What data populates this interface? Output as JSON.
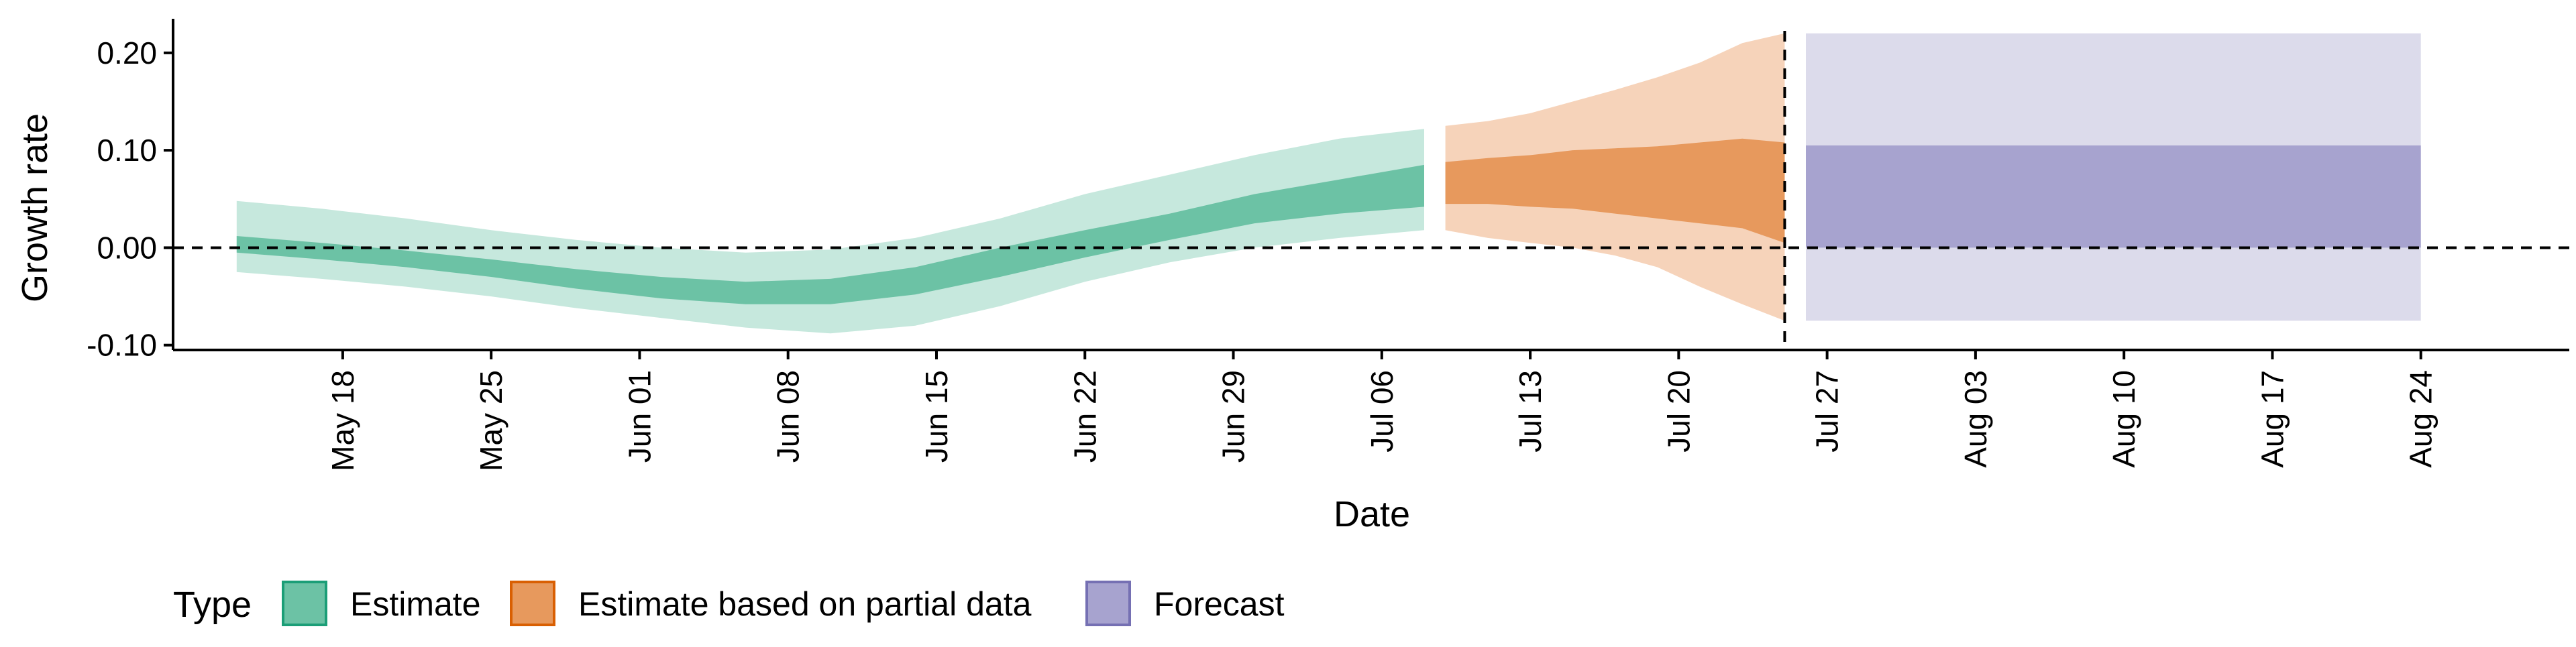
{
  "chart_data": {
    "type": "area",
    "xlabel": "Date",
    "ylabel": "Growth rate",
    "x_range": [
      "2020-05-10",
      "2020-08-31"
    ],
    "ylim": [
      -0.105,
      0.235
    ],
    "y_ticks": [
      {
        "value": 0.2,
        "label": "0.20"
      },
      {
        "value": 0.1,
        "label": "0.10"
      },
      {
        "value": 0.0,
        "label": "0.00"
      },
      {
        "value": -0.1,
        "label": "-0.10"
      }
    ],
    "x_ticks": [
      {
        "date": "2020-05-18",
        "label": "May 18"
      },
      {
        "date": "2020-05-25",
        "label": "May 25"
      },
      {
        "date": "2020-06-01",
        "label": "Jun 01"
      },
      {
        "date": "2020-06-08",
        "label": "Jun 08"
      },
      {
        "date": "2020-06-15",
        "label": "Jun 15"
      },
      {
        "date": "2020-06-22",
        "label": "Jun 22"
      },
      {
        "date": "2020-06-29",
        "label": "Jun 29"
      },
      {
        "date": "2020-07-06",
        "label": "Jul 06"
      },
      {
        "date": "2020-07-13",
        "label": "Jul 13"
      },
      {
        "date": "2020-07-20",
        "label": "Jul 20"
      },
      {
        "date": "2020-07-27",
        "label": "Jul 27"
      },
      {
        "date": "2020-08-03",
        "label": "Aug 03"
      },
      {
        "date": "2020-08-10",
        "label": "Aug 10"
      },
      {
        "date": "2020-08-17",
        "label": "Aug 17"
      },
      {
        "date": "2020-08-24",
        "label": "Aug 24"
      }
    ],
    "reference_lines": {
      "horizontal_y": 0.0,
      "vertical_date": "2020-07-25"
    },
    "grid": false,
    "legend": {
      "title": "Type",
      "position": "bottom-left",
      "entries": [
        {
          "label": "Estimate",
          "fill": "#6cc2a5",
          "border": "#1b9e77"
        },
        {
          "label": "Estimate based on partial data",
          "fill": "#e7995d",
          "border": "#d95f02"
        },
        {
          "label": "Forecast",
          "fill": "#a7a3cf",
          "border": "#7570b3"
        }
      ]
    },
    "series": [
      {
        "name": "Estimate",
        "color_dark": "#6cc2a5",
        "color_light": "#c6e8dd",
        "x": [
          "2020-05-13",
          "2020-05-17",
          "2020-05-21",
          "2020-05-25",
          "2020-05-29",
          "2020-06-02",
          "2020-06-06",
          "2020-06-10",
          "2020-06-14",
          "2020-06-18",
          "2020-06-22",
          "2020-06-26",
          "2020-06-30",
          "2020-07-04",
          "2020-07-08"
        ],
        "lower90": [
          -0.025,
          -0.032,
          -0.04,
          -0.05,
          -0.062,
          -0.072,
          -0.082,
          -0.088,
          -0.08,
          -0.06,
          -0.035,
          -0.015,
          0.0,
          0.01,
          0.018
        ],
        "lower50": [
          -0.005,
          -0.012,
          -0.02,
          -0.03,
          -0.042,
          -0.052,
          -0.058,
          -0.058,
          -0.048,
          -0.03,
          -0.01,
          0.008,
          0.025,
          0.035,
          0.042
        ],
        "upper50": [
          0.012,
          0.005,
          -0.003,
          -0.012,
          -0.022,
          -0.03,
          -0.035,
          -0.032,
          -0.02,
          0.0,
          0.018,
          0.035,
          0.055,
          0.07,
          0.085
        ],
        "upper90": [
          0.048,
          0.04,
          0.03,
          0.018,
          0.008,
          0.0,
          -0.005,
          -0.002,
          0.01,
          0.03,
          0.055,
          0.075,
          0.095,
          0.112,
          0.122
        ]
      },
      {
        "name": "Estimate based on partial data",
        "color_dark": "#e7995d",
        "color_light": "#f6d3ba",
        "x": [
          "2020-07-09",
          "2020-07-11",
          "2020-07-13",
          "2020-07-15",
          "2020-07-17",
          "2020-07-19",
          "2020-07-21",
          "2020-07-23",
          "2020-07-25"
        ],
        "lower90": [
          0.018,
          0.01,
          0.005,
          0.0,
          -0.008,
          -0.02,
          -0.04,
          -0.058,
          -0.075
        ],
        "lower50": [
          0.045,
          0.045,
          0.042,
          0.04,
          0.035,
          0.03,
          0.025,
          0.02,
          0.005
        ],
        "upper50": [
          0.088,
          0.092,
          0.095,
          0.1,
          0.102,
          0.104,
          0.108,
          0.112,
          0.108
        ],
        "upper90": [
          0.125,
          0.13,
          0.138,
          0.15,
          0.162,
          0.175,
          0.19,
          0.21,
          0.22
        ]
      },
      {
        "name": "Forecast",
        "color_dark": "#a7a3cf",
        "color_light": "#dcdbeb",
        "x": [
          "2020-07-26",
          "2020-08-24"
        ],
        "lower90": [
          -0.075,
          -0.075
        ],
        "lower50": [
          0.0,
          0.0
        ],
        "upper50": [
          0.105,
          0.105
        ],
        "upper90": [
          0.22,
          0.22
        ]
      }
    ]
  }
}
